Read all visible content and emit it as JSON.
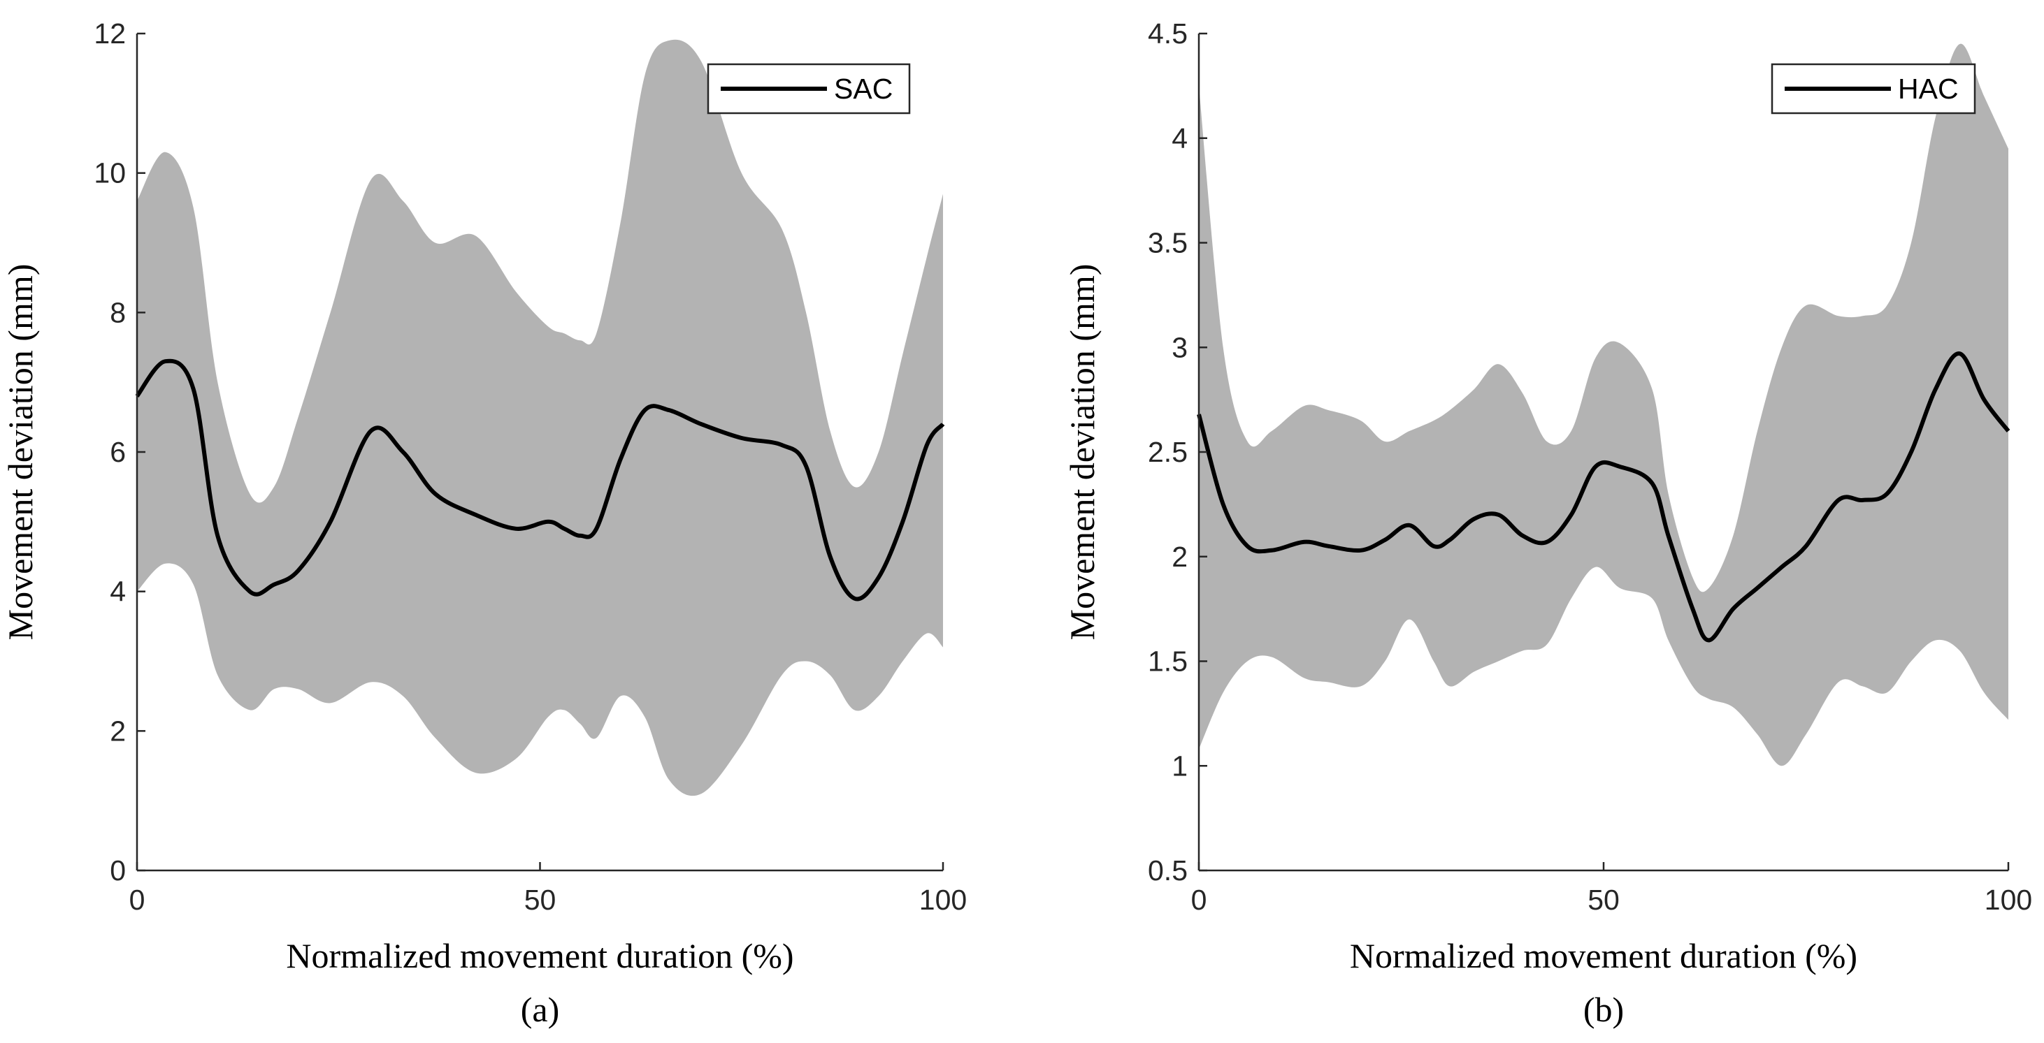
{
  "chart_data": [
    {
      "type": "line",
      "panel_label": "(a)",
      "xlabel": "Normalized movement duration (%)",
      "ylabel": "Movement deviation (mm)",
      "xlim": [
        0,
        100
      ],
      "ylim": [
        0,
        12
      ],
      "xticks": [
        0,
        50,
        100
      ],
      "yticks": [
        0,
        2,
        4,
        6,
        8,
        10,
        12
      ],
      "legend": {
        "label": "SAC",
        "placement": "top-right"
      },
      "band_color": "#b3b3b3",
      "line_color": "#000000",
      "x": [
        0,
        3.5,
        7,
        10,
        14,
        17,
        20,
        24,
        29,
        33,
        37,
        42,
        47,
        51,
        53,
        55,
        57,
        60,
        63,
        66,
        70,
        75,
        80,
        83,
        86,
        89,
        92,
        95,
        98,
        100
      ],
      "mean": [
        6.8,
        7.3,
        6.9,
        4.8,
        4.0,
        4.1,
        4.3,
        5.0,
        6.3,
        6.0,
        5.4,
        5.1,
        4.9,
        5.0,
        4.9,
        4.8,
        4.9,
        5.9,
        6.6,
        6.6,
        6.4,
        6.2,
        6.1,
        5.8,
        4.5,
        3.9,
        4.2,
        5.0,
        6.1,
        6.4
      ],
      "upper": [
        9.6,
        10.3,
        9.5,
        7.0,
        5.4,
        5.5,
        6.5,
        8.0,
        9.9,
        9.6,
        9.0,
        9.1,
        8.3,
        7.8,
        7.7,
        7.6,
        7.7,
        9.3,
        11.4,
        11.9,
        11.6,
        10.0,
        9.2,
        8.0,
        6.3,
        5.5,
        6.0,
        7.4,
        8.8,
        9.7
      ],
      "lower": [
        4.0,
        4.4,
        4.1,
        2.8,
        2.3,
        2.6,
        2.6,
        2.4,
        2.7,
        2.5,
        1.9,
        1.4,
        1.6,
        2.2,
        2.3,
        2.1,
        1.9,
        2.5,
        2.2,
        1.3,
        1.1,
        1.8,
        2.8,
        3.0,
        2.8,
        2.3,
        2.5,
        3.0,
        3.4,
        3.2
      ]
    },
    {
      "type": "line",
      "panel_label": "(b)",
      "xlabel": "Normalized movement duration (%)",
      "ylabel": "Movement deviation (mm)",
      "xlim": [
        0,
        100
      ],
      "ylim": [
        0.5,
        4.5
      ],
      "xticks": [
        0,
        50,
        100
      ],
      "yticks": [
        0.5,
        1,
        1.5,
        2,
        2.5,
        3,
        3.5,
        4,
        4.5
      ],
      "ytick_labels": [
        "0.5",
        "1",
        "1.5",
        "2",
        "2.5",
        "3",
        "3.5",
        "4",
        "4.5"
      ],
      "legend": {
        "label": "HAC",
        "placement": "top-right"
      },
      "band_color": "#b3b3b3",
      "line_color": "#000000",
      "x": [
        0,
        3,
        6,
        9,
        13,
        16,
        20,
        23,
        26,
        29,
        31,
        34,
        37,
        40,
        43,
        46,
        49,
        52,
        56,
        58,
        61,
        63,
        66,
        69,
        72,
        75,
        79,
        82,
        85,
        88,
        91,
        94,
        97,
        100
      ],
      "mean": [
        2.68,
        2.25,
        2.05,
        2.03,
        2.07,
        2.05,
        2.03,
        2.08,
        2.15,
        2.05,
        2.08,
        2.18,
        2.2,
        2.1,
        2.07,
        2.2,
        2.43,
        2.43,
        2.35,
        2.1,
        1.75,
        1.6,
        1.75,
        1.85,
        1.95,
        2.05,
        2.27,
        2.27,
        2.3,
        2.5,
        2.8,
        2.97,
        2.75,
        2.6
      ],
      "upper": [
        4.25,
        3.0,
        2.55,
        2.6,
        2.72,
        2.7,
        2.65,
        2.55,
        2.6,
        2.65,
        2.7,
        2.8,
        2.92,
        2.78,
        2.55,
        2.6,
        2.95,
        3.02,
        2.8,
        2.3,
        1.9,
        1.85,
        2.1,
        2.6,
        3.0,
        3.2,
        3.15,
        3.15,
        3.2,
        3.5,
        4.1,
        4.45,
        4.2,
        3.95
      ],
      "lower": [
        1.08,
        1.35,
        1.5,
        1.52,
        1.42,
        1.4,
        1.38,
        1.5,
        1.7,
        1.5,
        1.38,
        1.45,
        1.5,
        1.55,
        1.58,
        1.8,
        1.95,
        1.85,
        1.8,
        1.6,
        1.38,
        1.32,
        1.28,
        1.15,
        1.0,
        1.15,
        1.4,
        1.38,
        1.35,
        1.5,
        1.6,
        1.55,
        1.35,
        1.22
      ]
    }
  ]
}
